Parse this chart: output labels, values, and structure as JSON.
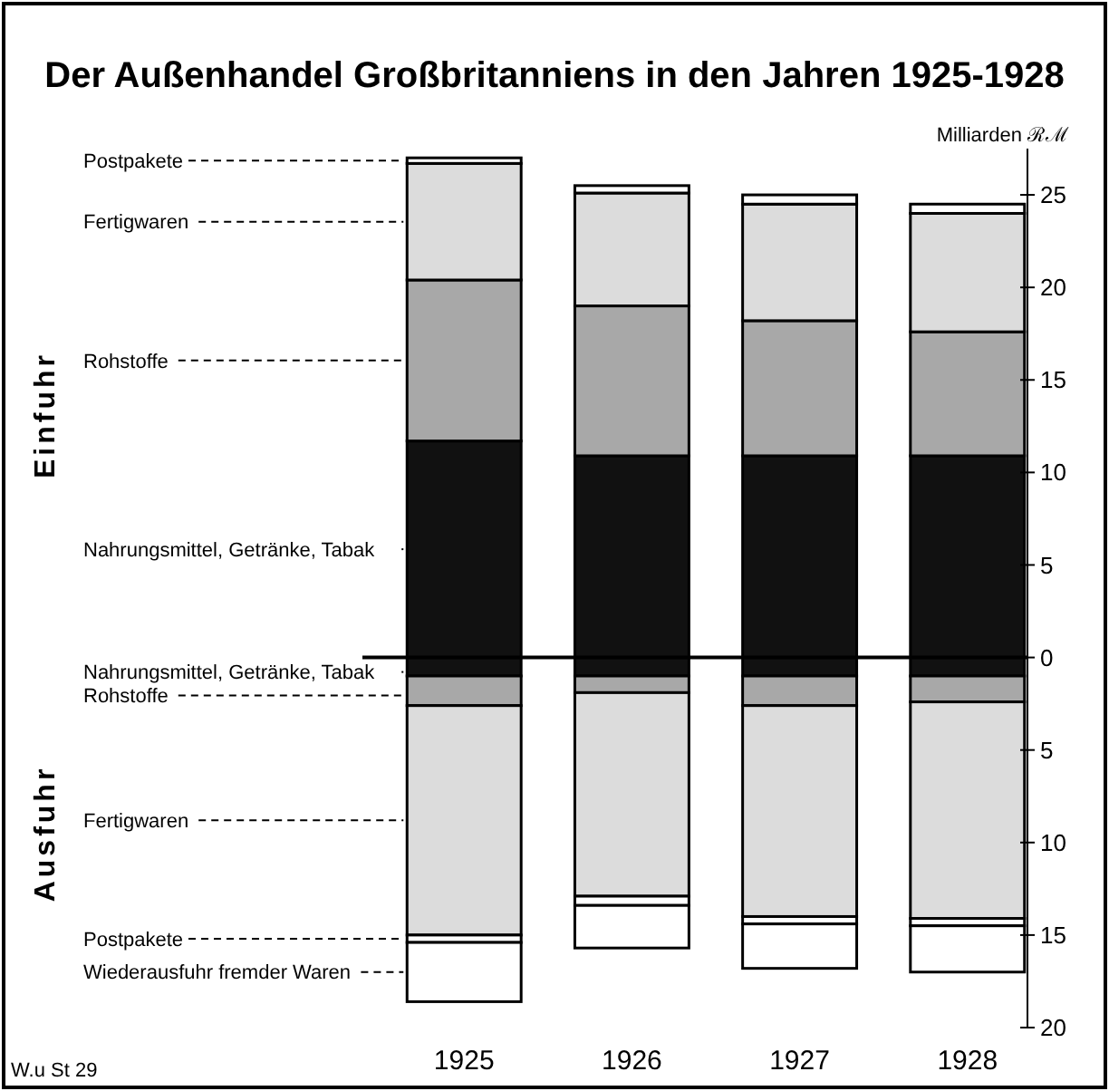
{
  "chart_data": {
    "type": "bar",
    "title": "Der Außenhandel Großbritanniens in den Jahren 1925-1928",
    "ylabel": "Milliarden ℛℳ",
    "categories": [
      "1925",
      "1926",
      "1927",
      "1928"
    ],
    "stacked": true,
    "legend": "left",
    "grid": false,
    "ylim": [
      -20,
      27.5
    ],
    "yticks": [
      {
        "value": -20,
        "label": "20"
      },
      {
        "value": -15,
        "label": "15"
      },
      {
        "value": -10,
        "label": "10"
      },
      {
        "value": -5,
        "label": "5"
      },
      0,
      5,
      10,
      15,
      20,
      25
    ],
    "series": [
      {
        "name": "Nahrungsmittel, Getränke, Tabak",
        "color": "#111111",
        "values": [
          11.7,
          10.9,
          10.9,
          10.9
        ]
      },
      {
        "name": "Rohstoffe",
        "color": "#a8a8a8",
        "values": [
          8.7,
          8.1,
          7.3,
          6.7
        ]
      },
      {
        "name": "Fertigwaren",
        "color": "#dcdcdc",
        "values": [
          6.3,
          6.1,
          6.3,
          6.4
        ]
      },
      {
        "name": "Postpakete",
        "color": "#ffffff",
        "values": [
          0.3,
          0.4,
          0.5,
          0.5
        ]
      },
      {
        "name": "Nahrungsmittel, Getränke, Tabak",
        "color": "#111111",
        "values": [
          -1.0,
          -1.0,
          -1.0,
          -1.0
        ]
      },
      {
        "name": "Rohstoffe",
        "color": "#a8a8a8",
        "values": [
          -1.6,
          -0.9,
          -1.6,
          -1.4
        ]
      },
      {
        "name": "Fertigwaren",
        "color": "#dcdcdc",
        "values": [
          -12.4,
          -11.0,
          -11.4,
          -11.7
        ]
      },
      {
        "name": "Postpakete",
        "color": "#ffffff",
        "values": [
          -0.4,
          -0.5,
          -0.4,
          -0.4
        ]
      },
      {
        "name": "Wiederausfuhr fremder Waren",
        "color": "#ffffff",
        "values": [
          -3.2,
          -2.3,
          -2.4,
          -2.5
        ]
      }
    ],
    "ref_lines": [
      {
        "axis": "y",
        "value": 0
      }
    ],
    "annotations": [
      "Einfuhr",
      "Ausfuhr",
      "W.u St 29"
    ]
  }
}
